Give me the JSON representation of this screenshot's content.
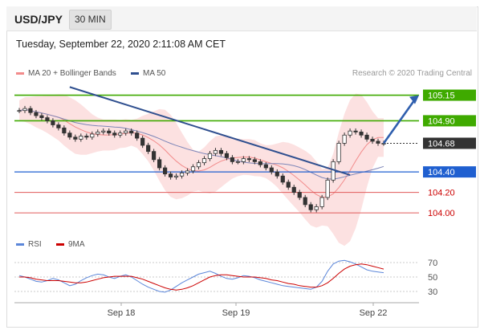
{
  "header": {
    "symbol": "USD/JPY",
    "interval": "30 MIN",
    "datetime": "Tuesday, September 22, 2020 2:11:08 AM CET"
  },
  "legend": {
    "ma_label": "MA 20 + Bollinger Bands",
    "ma50_label": "MA 50",
    "ma_color": "#f28b8b",
    "ma50_color": "#2f4f8f",
    "credit": "Research © 2020 Trading Central",
    "rsi_label": "RSI",
    "rsi9_label": "9MA",
    "rsi_color": "#5b86d9",
    "rsi9_color": "#cc0000"
  },
  "chart_data": [
    {
      "type": "candlestick",
      "x_ticks": [
        "Sep 18",
        "Sep 19",
        "Sep 22"
      ],
      "ylim": [
        103.93,
        105.28
      ],
      "close_series": [
        105.0,
        105.02,
        104.98,
        104.95,
        104.93,
        104.9,
        104.86,
        104.83,
        104.78,
        104.74,
        104.72,
        104.75,
        104.74,
        104.77,
        104.79,
        104.8,
        104.78,
        104.76,
        104.78,
        104.8,
        104.78,
        104.73,
        104.66,
        104.6,
        104.52,
        104.44,
        104.38,
        104.35,
        104.36,
        104.39,
        104.41,
        104.45,
        104.49,
        104.53,
        104.58,
        104.61,
        104.58,
        104.54,
        104.5,
        104.5,
        104.53,
        104.52,
        104.5,
        104.47,
        104.44,
        104.4,
        104.36,
        104.3,
        104.25,
        104.2,
        104.15,
        104.08,
        104.03,
        104.06,
        104.15,
        104.32,
        104.5,
        104.68,
        104.76,
        104.8,
        104.79,
        104.76,
        104.72,
        104.7,
        104.68,
        104.68
      ],
      "levels": [
        {
          "value": 105.15,
          "label": "105.15",
          "style": "resistance"
        },
        {
          "value": 104.9,
          "label": "104.90",
          "style": "resistance"
        },
        {
          "value": 104.68,
          "label": "104.68",
          "style": "last"
        },
        {
          "value": 104.4,
          "label": "104.40",
          "style": "pivot"
        },
        {
          "value": 104.2,
          "label": "104.20",
          "style": "support"
        },
        {
          "value": 104.0,
          "label": "104.00",
          "style": "support"
        }
      ]
    },
    {
      "type": "line",
      "name": "RSI",
      "ylim": [
        20,
        80
      ],
      "y_ticks": [
        "70",
        "50",
        "30"
      ],
      "rsi": [
        52,
        50,
        47,
        44,
        43,
        45,
        48,
        46,
        42,
        38,
        40,
        45,
        49,
        52,
        54,
        53,
        50,
        48,
        51,
        53,
        50,
        45,
        40,
        36,
        33,
        30,
        29,
        32,
        37,
        42,
        46,
        50,
        54,
        56,
        58,
        55,
        51,
        48,
        47,
        49,
        52,
        51,
        49,
        46,
        44,
        42,
        40,
        38,
        37,
        36,
        35,
        34,
        33,
        36,
        44,
        58,
        68,
        72,
        73,
        71,
        68,
        64,
        60,
        58,
        57,
        56
      ],
      "ma9": [
        50,
        50,
        49,
        47,
        46,
        45,
        45,
        45,
        44,
        43,
        42,
        42,
        43,
        45,
        47,
        49,
        50,
        51,
        51,
        51,
        51,
        49,
        47,
        44,
        41,
        38,
        35,
        33,
        32,
        33,
        35,
        38,
        42,
        46,
        50,
        52,
        53,
        53,
        52,
        51,
        50,
        50,
        50,
        49,
        48,
        46,
        45,
        43,
        41,
        40,
        38,
        37,
        36,
        36,
        38,
        42,
        48,
        55,
        61,
        65,
        67,
        68,
        67,
        65,
        63,
        61
      ]
    }
  ]
}
